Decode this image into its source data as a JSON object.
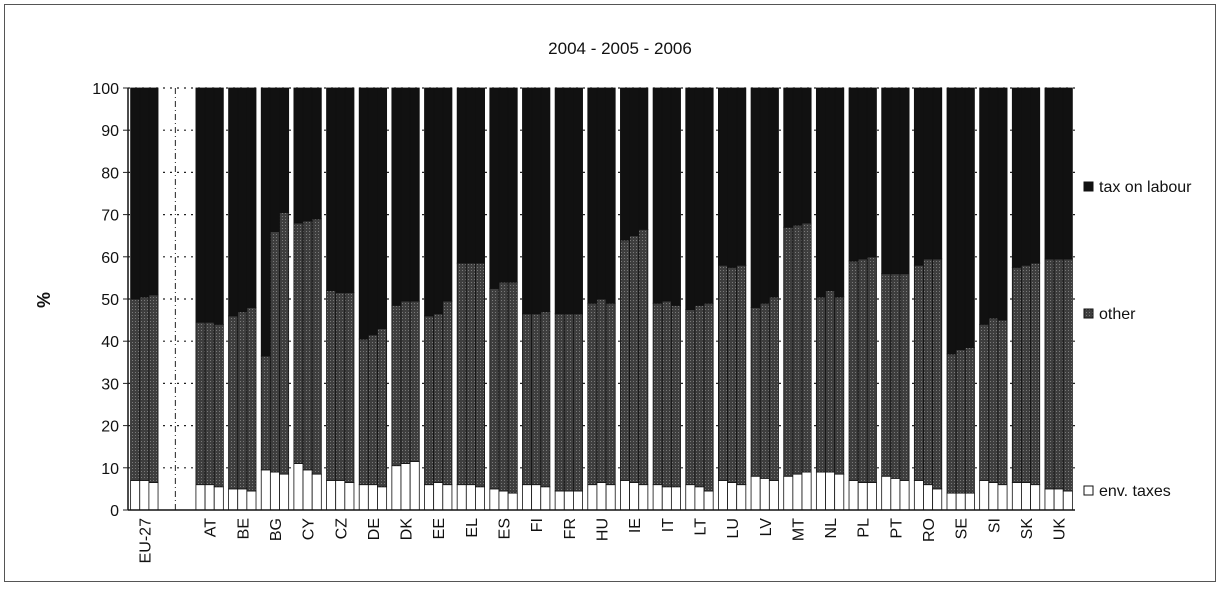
{
  "chart_data": {
    "type": "bar",
    "stacked": true,
    "title": "2004 - 2005 - 2006",
    "xlabel": "",
    "ylabel": "%",
    "ylim": [
      0,
      100
    ],
    "yticks": [
      0,
      10,
      20,
      30,
      40,
      50,
      60,
      70,
      80,
      90,
      100
    ],
    "grid": "dotted horizontal gridlines",
    "legend_position": "right",
    "years_per_category": [
      "2004",
      "2005",
      "2006"
    ],
    "categories": [
      "EU-27",
      "AT",
      "BE",
      "BG",
      "CY",
      "CZ",
      "DE",
      "DK",
      "EE",
      "EL",
      "ES",
      "FI",
      "FR",
      "HU",
      "IE",
      "IT",
      "LT",
      "LU",
      "LV",
      "MT",
      "NL",
      "PL",
      "PT",
      "RO",
      "SE",
      "SI",
      "SK",
      "UK"
    ],
    "series": [
      {
        "name": "env. taxes",
        "color": "#ffffff",
        "values": [
          [
            7,
            7,
            6.5
          ],
          [
            6,
            6,
            5.5
          ],
          [
            5,
            5,
            4.5
          ],
          [
            9.5,
            9,
            8.5
          ],
          [
            11,
            9.5,
            8.5
          ],
          [
            7,
            7,
            6.5
          ],
          [
            6,
            6,
            5.5
          ],
          [
            10.5,
            11,
            11.5
          ],
          [
            6,
            6.5,
            6
          ],
          [
            6,
            6,
            5.5
          ],
          [
            5,
            4.5,
            4
          ],
          [
            6,
            6,
            5.5
          ],
          [
            4.5,
            4.5,
            4.5
          ],
          [
            6,
            6.5,
            6
          ],
          [
            7,
            6.5,
            6
          ],
          [
            6,
            5.5,
            5.5
          ],
          [
            6,
            5.5,
            4.5
          ],
          [
            7,
            6.5,
            6
          ],
          [
            8,
            7.5,
            7
          ],
          [
            8,
            8.5,
            9
          ],
          [
            9,
            9,
            8.5
          ],
          [
            7,
            6.5,
            6.5
          ],
          [
            8,
            7.5,
            7
          ],
          [
            7,
            6,
            5
          ],
          [
            4,
            4,
            4
          ],
          [
            7,
            6.5,
            6
          ],
          [
            6.5,
            6.5,
            6
          ],
          [
            5,
            5,
            4.5
          ]
        ]
      },
      {
        "name": "other",
        "color": "#4a4a4a",
        "values": [
          [
            43,
            43.5,
            44.5
          ],
          [
            38.5,
            38.5,
            38.5
          ],
          [
            41,
            42,
            43.5
          ],
          [
            27,
            57,
            62
          ],
          [
            57,
            59,
            60.5
          ],
          [
            45,
            44.5,
            45
          ],
          [
            34.5,
            35.5,
            37.5
          ],
          [
            38,
            38.5,
            38
          ],
          [
            40,
            40,
            43.5
          ],
          [
            52.5,
            52.5,
            53
          ],
          [
            47.5,
            49.5,
            50
          ],
          [
            40.5,
            40.5,
            41.5
          ],
          [
            42,
            42,
            42
          ],
          [
            43,
            43.5,
            43
          ],
          [
            57,
            58.5,
            60.5
          ],
          [
            43,
            44,
            43
          ],
          [
            41.5,
            43,
            44.5
          ],
          [
            51,
            51,
            52
          ],
          [
            40,
            41.5,
            43.5
          ],
          [
            59,
            59,
            59
          ],
          [
            41.5,
            43,
            42
          ],
          [
            52,
            53,
            53.5
          ],
          [
            48,
            48.5,
            49
          ],
          [
            51,
            53.5,
            54.5
          ],
          [
            33,
            34,
            34.5
          ],
          [
            37,
            39,
            39
          ],
          [
            51,
            51.5,
            52.5
          ],
          [
            54.5,
            54.5,
            55
          ]
        ]
      },
      {
        "name": "tax on labour",
        "color": "#111111",
        "values": [
          [
            50,
            49.5,
            49
          ],
          [
            55.5,
            55.5,
            56
          ],
          [
            54,
            53,
            52
          ],
          [
            63.5,
            34,
            29.5
          ],
          [
            32,
            31.5,
            31
          ],
          [
            48,
            48.5,
            48.5
          ],
          [
            59.5,
            58.5,
            57
          ],
          [
            51.5,
            50.5,
            50.5
          ],
          [
            54,
            53.5,
            50.5
          ],
          [
            41.5,
            41.5,
            41.5
          ],
          [
            47.5,
            46,
            46
          ],
          [
            53.5,
            53.5,
            53
          ],
          [
            53.5,
            53.5,
            53.5
          ],
          [
            51,
            50,
            51
          ],
          [
            36,
            35,
            33.5
          ],
          [
            51,
            50.5,
            51.5
          ],
          [
            52.5,
            51.5,
            51
          ],
          [
            42,
            42.5,
            42
          ],
          [
            52,
            51,
            49.5
          ],
          [
            33,
            32.5,
            32
          ],
          [
            49.5,
            48,
            49.5
          ],
          [
            41,
            40.5,
            40
          ],
          [
            44,
            44,
            44
          ],
          [
            42,
            40.5,
            40.5
          ],
          [
            63,
            62,
            61.5
          ],
          [
            56,
            54.5,
            55
          ],
          [
            42.5,
            42,
            41.5
          ],
          [
            40.5,
            40.5,
            40.5
          ]
        ]
      }
    ],
    "legend_order": [
      "tax on labour",
      "other",
      "env. taxes"
    ]
  }
}
